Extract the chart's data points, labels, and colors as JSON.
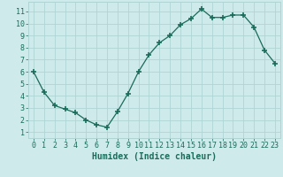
{
  "x": [
    0,
    1,
    2,
    3,
    4,
    5,
    6,
    7,
    8,
    9,
    10,
    11,
    12,
    13,
    14,
    15,
    16,
    17,
    18,
    19,
    20,
    21,
    22,
    23
  ],
  "y": [
    6.0,
    4.3,
    3.2,
    2.9,
    2.6,
    2.0,
    1.6,
    1.4,
    2.7,
    4.2,
    6.0,
    7.4,
    8.4,
    9.0,
    9.9,
    10.4,
    11.2,
    10.5,
    10.5,
    10.7,
    10.7,
    9.7,
    7.8,
    6.7
  ],
  "line_color": "#1a6b5a",
  "marker": "+",
  "marker_size": 4,
  "bg_color": "#ceeaea",
  "grid_color": "#b0d4d4",
  "xlabel": "Humidex (Indice chaleur)",
  "xlabel_fontsize": 7,
  "xlabel_color": "#1a6b5a",
  "ylabel_ticks": [
    1,
    2,
    3,
    4,
    5,
    6,
    7,
    8,
    9,
    10,
    11
  ],
  "xtick_labels": [
    "0",
    "1",
    "2",
    "3",
    "4",
    "5",
    "6",
    "7",
    "8",
    "9",
    "10",
    "11",
    "12",
    "13",
    "14",
    "15",
    "16",
    "17",
    "18",
    "19",
    "20",
    "21",
    "22",
    "23"
  ],
  "xlim": [
    -0.5,
    23.5
  ],
  "ylim": [
    0.5,
    11.8
  ],
  "tick_fontsize": 6,
  "tick_color": "#1a6b5a"
}
